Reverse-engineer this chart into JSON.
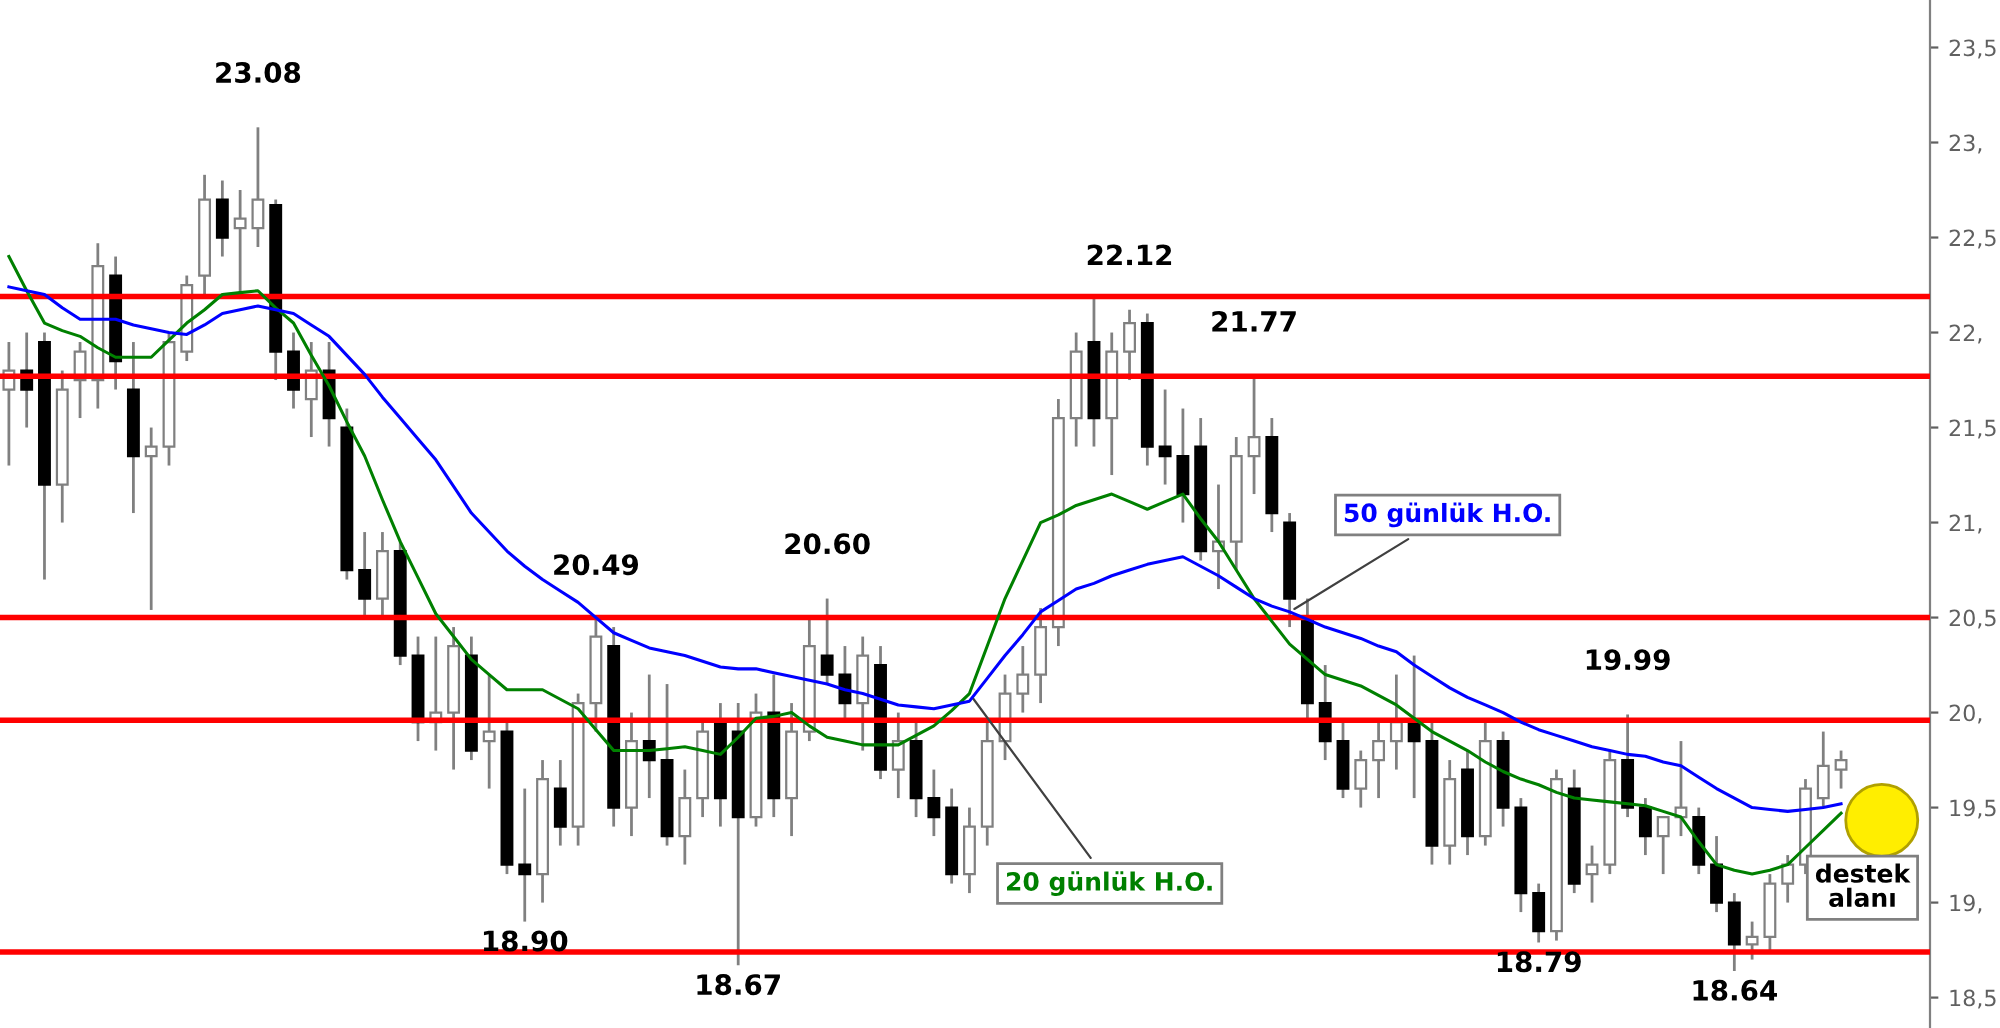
{
  "chart_data": {
    "type": "candlestick",
    "categories": [
      null,
      null,
      null,
      null,
      null,
      null,
      null,
      null,
      null,
      null,
      null,
      null,
      null,
      null,
      null,
      null,
      null,
      null,
      null,
      null,
      null,
      null,
      null,
      null,
      null,
      null,
      null,
      null,
      null,
      null,
      null,
      null,
      null,
      null,
      null,
      null,
      null,
      null,
      null,
      null,
      null,
      null,
      null,
      null,
      null,
      null,
      null,
      null,
      null,
      null,
      null,
      null,
      null,
      null,
      null,
      null,
      null,
      null,
      null,
      null,
      null,
      null,
      null,
      null,
      null,
      null,
      null,
      null,
      null,
      null,
      null,
      null,
      null,
      null,
      null,
      null,
      null,
      null,
      null,
      null,
      null,
      null,
      null,
      null,
      null,
      null,
      null,
      null,
      null,
      null,
      null,
      null,
      null,
      null,
      null,
      null,
      null,
      null,
      null,
      null,
      null,
      null,
      null,
      null
    ],
    "ohlc": [
      [
        21.7,
        21.95,
        21.3,
        21.8
      ],
      [
        21.8,
        22.0,
        21.5,
        21.7
      ],
      [
        21.95,
        22.0,
        20.7,
        21.2
      ],
      [
        21.2,
        21.8,
        21.0,
        21.7
      ],
      [
        21.75,
        21.95,
        21.55,
        21.9
      ],
      [
        21.75,
        22.47,
        21.6,
        22.35
      ],
      [
        22.3,
        22.4,
        21.7,
        21.85
      ],
      [
        21.7,
        21.95,
        21.05,
        21.35
      ],
      [
        21.35,
        21.5,
        20.54,
        21.4
      ],
      [
        21.4,
        22.0,
        21.3,
        21.95
      ],
      [
        21.9,
        22.3,
        21.85,
        22.25
      ],
      [
        22.3,
        22.83,
        22.2,
        22.7
      ],
      [
        22.7,
        22.8,
        22.4,
        22.5
      ],
      [
        22.55,
        22.75,
        22.2,
        22.6
      ],
      [
        22.55,
        23.08,
        22.45,
        22.7
      ],
      [
        22.67,
        22.7,
        21.75,
        21.9
      ],
      [
        21.9,
        22.0,
        21.6,
        21.7
      ],
      [
        21.65,
        21.95,
        21.45,
        21.8
      ],
      [
        21.8,
        21.95,
        21.4,
        21.55
      ],
      [
        21.5,
        21.6,
        20.7,
        20.75
      ],
      [
        20.75,
        20.95,
        20.5,
        20.6
      ],
      [
        20.6,
        20.95,
        20.5,
        20.85
      ],
      [
        20.85,
        20.9,
        20.25,
        20.3
      ],
      [
        20.3,
        20.4,
        19.85,
        19.95
      ],
      [
        19.95,
        20.4,
        19.8,
        20.0
      ],
      [
        20.0,
        20.45,
        19.7,
        20.35
      ],
      [
        20.3,
        20.4,
        19.75,
        19.8
      ],
      [
        19.85,
        20.2,
        19.6,
        19.9
      ],
      [
        19.9,
        19.95,
        19.15,
        19.2
      ],
      [
        19.2,
        19.6,
        18.9,
        19.15
      ],
      [
        19.15,
        19.75,
        19.0,
        19.65
      ],
      [
        19.6,
        19.75,
        19.3,
        19.4
      ],
      [
        19.4,
        20.1,
        19.3,
        20.05
      ],
      [
        20.05,
        20.49,
        19.9,
        20.4
      ],
      [
        20.35,
        20.45,
        19.4,
        19.5
      ],
      [
        19.5,
        20.0,
        19.35,
        19.85
      ],
      [
        19.85,
        20.2,
        19.55,
        19.75
      ],
      [
        19.75,
        20.15,
        19.3,
        19.35
      ],
      [
        19.35,
        19.7,
        19.2,
        19.55
      ],
      [
        19.55,
        19.95,
        19.45,
        19.9
      ],
      [
        19.95,
        20.05,
        19.4,
        19.55
      ],
      [
        19.9,
        20.05,
        18.67,
        19.45
      ],
      [
        19.45,
        20.1,
        19.4,
        20.0
      ],
      [
        20.0,
        20.2,
        19.45,
        19.55
      ],
      [
        19.55,
        20.05,
        19.35,
        19.9
      ],
      [
        19.9,
        20.5,
        19.85,
        20.35
      ],
      [
        20.3,
        20.6,
        20.15,
        20.2
      ],
      [
        20.2,
        20.35,
        19.95,
        20.05
      ],
      [
        20.05,
        20.4,
        19.8,
        20.3
      ],
      [
        20.25,
        20.35,
        19.65,
        19.7
      ],
      [
        19.7,
        20.0,
        19.55,
        19.85
      ],
      [
        19.85,
        19.95,
        19.45,
        19.55
      ],
      [
        19.55,
        19.7,
        19.35,
        19.45
      ],
      [
        19.5,
        19.6,
        19.1,
        19.15
      ],
      [
        19.15,
        19.5,
        19.05,
        19.4
      ],
      [
        19.4,
        19.95,
        19.3,
        19.85
      ],
      [
        19.85,
        20.2,
        19.75,
        20.1
      ],
      [
        20.1,
        20.35,
        20.0,
        20.2
      ],
      [
        20.2,
        20.55,
        20.05,
        20.45
      ],
      [
        20.45,
        21.65,
        20.35,
        21.55
      ],
      [
        21.55,
        22.0,
        21.4,
        21.9
      ],
      [
        21.95,
        22.2,
        21.4,
        21.55
      ],
      [
        21.55,
        22.0,
        21.25,
        21.9
      ],
      [
        21.9,
        22.12,
        21.75,
        22.05
      ],
      [
        22.05,
        22.1,
        21.3,
        21.4
      ],
      [
        21.4,
        21.7,
        21.2,
        21.35
      ],
      [
        21.35,
        21.6,
        21.0,
        21.15
      ],
      [
        21.4,
        21.55,
        20.8,
        20.85
      ],
      [
        20.85,
        21.2,
        20.65,
        20.9
      ],
      [
        20.9,
        21.45,
        20.75,
        21.35
      ],
      [
        21.35,
        21.77,
        21.15,
        21.45
      ],
      [
        21.45,
        21.55,
        20.95,
        21.05
      ],
      [
        21.0,
        21.05,
        20.45,
        20.6
      ],
      [
        20.5,
        20.6,
        19.95,
        20.05
      ],
      [
        20.05,
        20.25,
        19.75,
        19.85
      ],
      [
        19.85,
        19.95,
        19.55,
        19.6
      ],
      [
        19.6,
        19.8,
        19.5,
        19.75
      ],
      [
        19.75,
        19.95,
        19.55,
        19.85
      ],
      [
        19.85,
        20.2,
        19.7,
        19.95
      ],
      [
        19.95,
        20.3,
        19.55,
        19.85
      ],
      [
        19.85,
        19.95,
        19.2,
        19.3
      ],
      [
        19.3,
        19.75,
        19.2,
        19.65
      ],
      [
        19.7,
        19.8,
        19.25,
        19.35
      ],
      [
        19.35,
        19.95,
        19.3,
        19.85
      ],
      [
        19.85,
        19.9,
        19.4,
        19.5
      ],
      [
        19.5,
        19.55,
        18.95,
        19.05
      ],
      [
        19.05,
        19.1,
        18.79,
        18.85
      ],
      [
        18.85,
        19.7,
        18.8,
        19.65
      ],
      [
        19.6,
        19.7,
        19.05,
        19.1
      ],
      [
        19.15,
        19.3,
        19.0,
        19.2
      ],
      [
        19.2,
        19.8,
        19.15,
        19.75
      ],
      [
        19.75,
        19.99,
        19.45,
        19.5
      ],
      [
        19.5,
        19.55,
        19.25,
        19.35
      ],
      [
        19.35,
        19.45,
        19.15,
        19.45
      ],
      [
        19.45,
        19.85,
        19.35,
        19.5
      ],
      [
        19.45,
        19.5,
        19.15,
        19.2
      ],
      [
        19.2,
        19.35,
        18.95,
        19.0
      ],
      [
        19.0,
        19.05,
        18.64,
        18.78
      ],
      [
        18.78,
        18.9,
        18.7,
        18.82
      ],
      [
        18.82,
        19.15,
        18.75,
        19.1
      ],
      [
        19.1,
        19.25,
        19.0,
        19.2
      ],
      [
        19.2,
        19.65,
        19.15,
        19.6
      ],
      [
        19.55,
        19.9,
        19.5,
        19.72
      ],
      [
        19.7,
        19.8,
        19.6,
        19.75
      ]
    ],
    "series": [
      {
        "name": "20 günlük H.O.",
        "type": "line",
        "color": "#008000",
        "values": [
          22.4,
          22.22,
          22.05,
          22.01,
          21.98,
          21.92,
          21.87,
          21.87,
          21.87,
          21.96,
          22.05,
          22.12,
          22.2,
          22.21,
          22.22,
          22.13,
          22.05,
          21.88,
          21.72,
          21.53,
          21.35,
          21.12,
          20.9,
          20.71,
          20.52,
          20.4,
          20.28,
          20.2,
          20.12,
          20.12,
          20.12,
          20.07,
          20.02,
          19.91,
          19.8,
          19.8,
          19.8,
          19.81,
          19.82,
          19.8,
          19.78,
          19.87,
          19.97,
          19.98,
          20.0,
          19.93,
          19.87,
          19.85,
          19.83,
          19.83,
          19.83,
          19.88,
          19.93,
          20.01,
          20.1,
          20.35,
          20.6,
          20.8,
          21.0,
          21.04,
          21.09,
          21.12,
          21.15,
          21.11,
          21.07,
          21.11,
          21.15,
          21.02,
          20.9,
          20.75,
          20.6,
          20.48,
          20.36,
          20.28,
          20.2,
          20.17,
          20.14,
          20.09,
          20.04,
          19.97,
          19.9,
          19.85,
          19.8,
          19.74,
          19.69,
          19.65,
          19.62,
          19.58,
          19.55,
          19.54,
          19.53,
          19.52,
          19.51,
          19.48,
          19.45,
          19.32,
          19.2,
          19.17,
          19.15,
          19.17,
          19.2,
          19.29,
          19.38,
          19.47
        ]
      },
      {
        "name": "50 günlük H.O.",
        "type": "line",
        "color": "#0000ff",
        "values": [
          22.24,
          22.22,
          22.2,
          22.13,
          22.07,
          22.07,
          22.07,
          22.04,
          22.02,
          22.0,
          21.99,
          22.04,
          22.1,
          22.12,
          22.14,
          22.12,
          22.1,
          22.04,
          21.98,
          21.88,
          21.78,
          21.66,
          21.55,
          21.44,
          21.33,
          21.19,
          21.05,
          20.95,
          20.85,
          20.77,
          20.7,
          20.64,
          20.58,
          20.5,
          20.42,
          20.38,
          20.34,
          20.32,
          20.3,
          20.27,
          20.24,
          20.23,
          20.23,
          20.21,
          20.19,
          20.17,
          20.15,
          20.12,
          20.1,
          20.07,
          20.04,
          20.03,
          20.02,
          20.04,
          20.06,
          20.18,
          20.3,
          20.41,
          20.53,
          20.59,
          20.65,
          20.68,
          20.72,
          20.75,
          20.78,
          20.8,
          20.82,
          20.77,
          20.72,
          20.66,
          20.6,
          20.56,
          20.53,
          20.49,
          20.45,
          20.42,
          20.39,
          20.35,
          20.32,
          20.25,
          20.19,
          20.13,
          20.08,
          20.04,
          20.0,
          19.95,
          19.91,
          19.88,
          19.85,
          19.82,
          19.8,
          19.78,
          19.77,
          19.74,
          19.72,
          19.66,
          19.6,
          19.55,
          19.5,
          19.49,
          19.48,
          19.49,
          19.5,
          19.52
        ]
      }
    ],
    "ylim": [
      18.34,
      23.75
    ],
    "yticks": [
      {
        "value": 18.5,
        "label": "18,5"
      },
      {
        "value": 19,
        "label": "19,"
      },
      {
        "value": 19.5,
        "label": "19,5"
      },
      {
        "value": 20,
        "label": "20,"
      },
      {
        "value": 20.5,
        "label": "20,5"
      },
      {
        "value": 21,
        "label": "21,"
      },
      {
        "value": 21.5,
        "label": "21,5"
      },
      {
        "value": 22,
        "label": "22,"
      },
      {
        "value": 22.5,
        "label": "22,5"
      },
      {
        "value": 23,
        "label": "23,"
      },
      {
        "value": 23.5,
        "label": "23,5"
      }
    ],
    "ref_lines": [
      {
        "axis": "y",
        "value": 22.19,
        "color": "#ff0000"
      },
      {
        "axis": "y",
        "value": 21.77,
        "color": "#ff0000"
      },
      {
        "axis": "y",
        "value": 20.5,
        "color": "#ff0000"
      },
      {
        "axis": "y",
        "value": 19.96,
        "color": "#ff0000"
      },
      {
        "axis": "y",
        "value": 18.74,
        "color": "#ff0000"
      }
    ],
    "annotations": [
      {
        "text": "23.08",
        "y": 23.08
      },
      {
        "text": "20.49",
        "y": 20.49
      },
      {
        "text": "18.90",
        "y": 18.9
      },
      {
        "text": "20.60",
        "y": 20.6
      },
      {
        "text": "18.67",
        "y": 18.67
      },
      {
        "text": "22.12",
        "y": 22.12
      },
      {
        "text": "21.77",
        "y": 21.77
      },
      {
        "text": "19.99",
        "y": 19.99
      },
      {
        "text": "18.79",
        "y": 18.79
      },
      {
        "text": "18.64",
        "y": 18.64
      },
      "destek alanı"
    ],
    "grid": false,
    "legend": false
  }
}
